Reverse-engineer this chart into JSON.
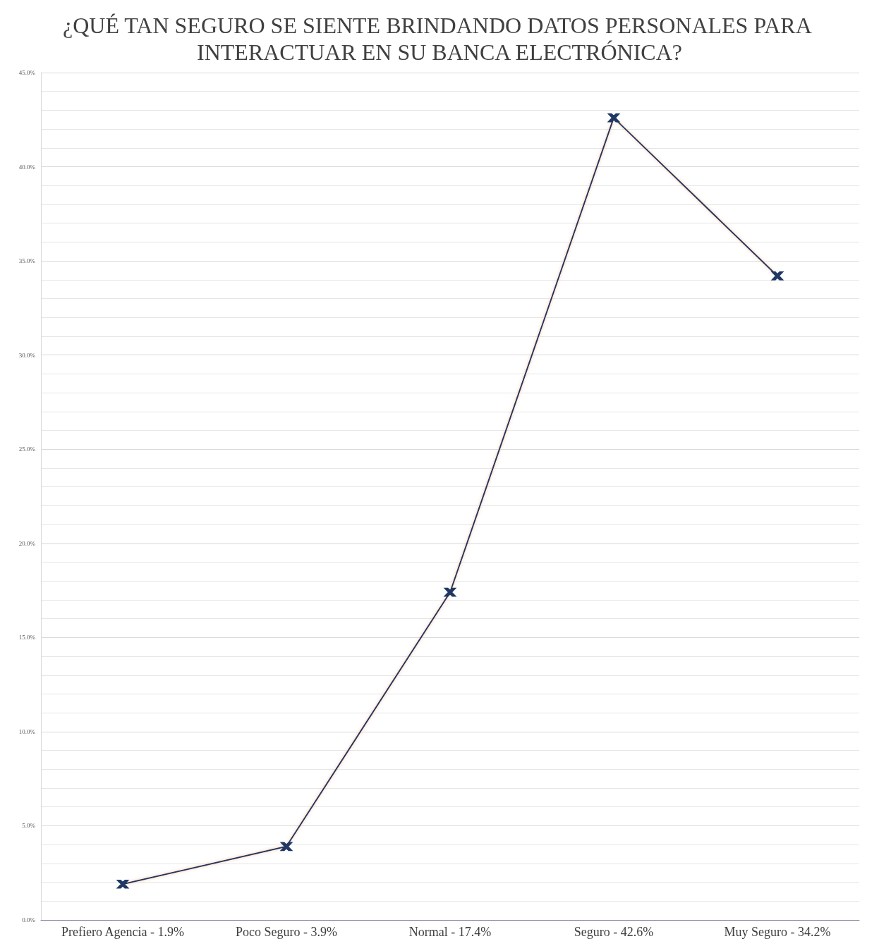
{
  "chart_data": {
    "type": "line",
    "title": "¿QUÉ TAN SEGURO SE SIENTE BRINDANDO DATOS PERSONALES PARA INTERACTUAR EN SU BANCA ELECTRÓNICA?",
    "categories": [
      "Prefiero Agencia - 1.9%",
      "Poco Seguro - 3.9%",
      "Normal - 17.4%",
      "Seguro - 42.6%",
      "Muy Seguro - 34.2%"
    ],
    "series": [
      {
        "color": "#1f3864",
        "values": [
          1.9,
          3.9,
          17.4,
          42.6,
          34.2
        ]
      }
    ],
    "ylim": [
      0,
      45
    ],
    "yticks": [
      {
        "value": 0,
        "label": "0.0%"
      },
      {
        "value": 5,
        "label": "5.0%"
      },
      {
        "value": 10,
        "label": "10.0%"
      },
      {
        "value": 15,
        "label": "15.0%"
      },
      {
        "value": 20,
        "label": "20.0%"
      },
      {
        "value": 25,
        "label": "25.0%"
      },
      {
        "value": 30,
        "label": "30.0%"
      },
      {
        "value": 35,
        "label": "35.0%"
      },
      {
        "value": 40,
        "label": "40.0%"
      },
      {
        "value": 45,
        "label": "45.0%"
      }
    ],
    "grid": "y",
    "marker": "cross",
    "line_style": "solid"
  }
}
